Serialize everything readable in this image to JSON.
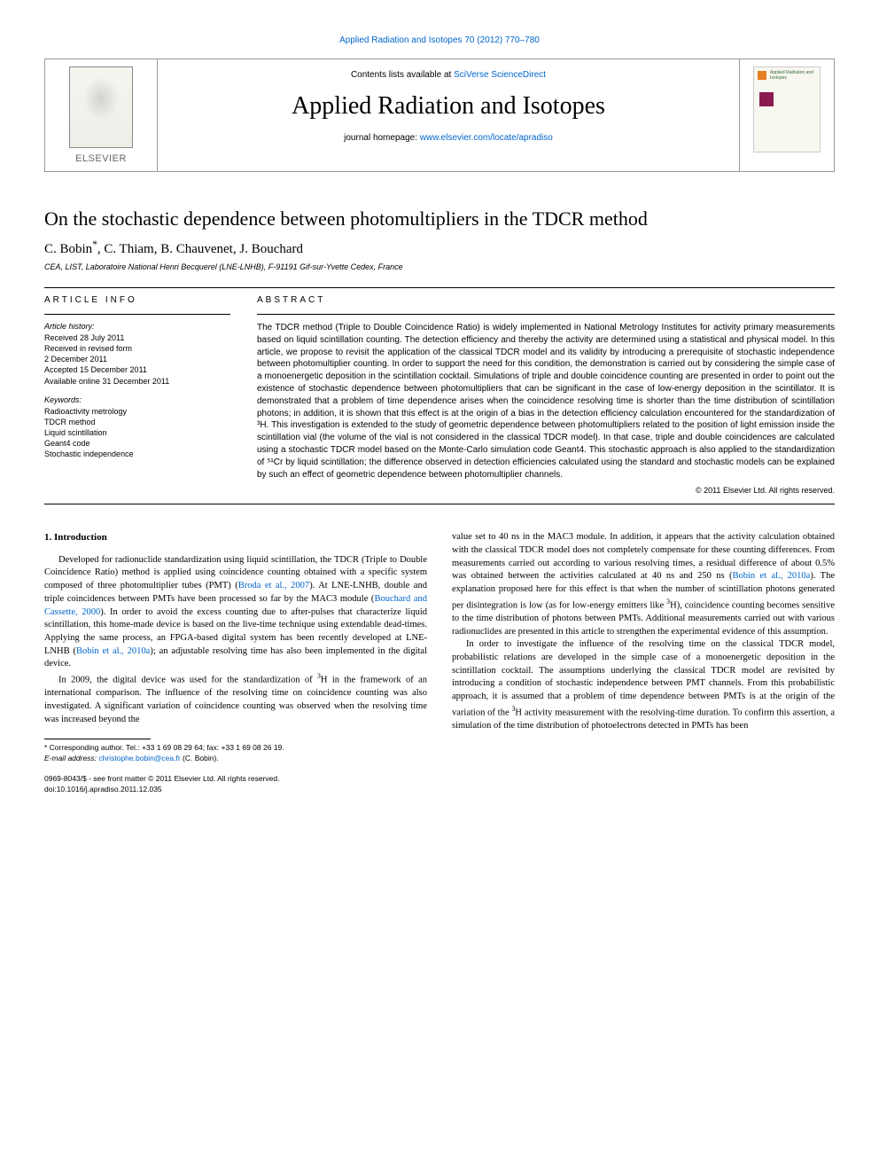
{
  "top_citation": "Applied Radiation and Isotopes 70 (2012) 770–780",
  "header": {
    "contents_prefix": "Contents lists available at ",
    "contents_link": "SciVerse ScienceDirect",
    "journal_name": "Applied Radiation and Isotopes",
    "homepage_prefix": "journal homepage: ",
    "homepage_link": "www.elsevier.com/locate/apradiso",
    "publisher": "ELSEVIER",
    "cover_title": "Applied Radiation and Isotopes"
  },
  "article": {
    "title": "On the stochastic dependence between photomultipliers in the TDCR method",
    "authors_html": "C. Bobin *, C. Thiam, B. Chauvenet, J. Bouchard",
    "affiliation": "CEA, LIST, Laboratoire National Henri Becquerel (LNE-LNHB), F-91191 Gif-sur-Yvette Cedex, France"
  },
  "info": {
    "heading": "ARTICLE INFO",
    "history_heading": "Article history:",
    "history": [
      "Received 28 July 2011",
      "Received in revised form",
      "2 December 2011",
      "Accepted 15 December 2011",
      "Available online 31 December 2011"
    ],
    "keywords_heading": "Keywords:",
    "keywords": [
      "Radioactivity metrology",
      "TDCR method",
      "Liquid scintillation",
      "Geant4 code",
      "Stochastic independence"
    ]
  },
  "abstract": {
    "heading": "ABSTRACT",
    "text": "The TDCR method (Triple to Double Coincidence Ratio) is widely implemented in National Metrology Institutes for activity primary measurements based on liquid scintillation counting. The detection efficiency and thereby the activity are determined using a statistical and physical model. In this article, we propose to revisit the application of the classical TDCR model and its validity by introducing a prerequisite of stochastic independence between photomultiplier counting. In order to support the need for this condition, the demonstration is carried out by considering the simple case of a monoenergetic deposition in the scintillation cocktail. Simulations of triple and double coincidence counting are presented in order to point out the existence of stochastic dependence between photomultipliers that can be significant in the case of low-energy deposition in the scintillator. It is demonstrated that a problem of time dependence arises when the coincidence resolving time is shorter than the time distribution of scintillation photons; in addition, it is shown that this effect is at the origin of a bias in the detection efficiency calculation encountered for the standardization of ³H. This investigation is extended to the study of geometric dependence between photomultipliers related to the position of light emission inside the scintillation vial (the volume of the vial is not considered in the classical TDCR model). In that case, triple and double coincidences are calculated using a stochastic TDCR model based on the Monte-Carlo simulation code Geant4. This stochastic approach is also applied to the standardization of ⁵¹Cr by liquid scintillation; the difference observed in detection efficiencies calculated using the standard and stochastic models can be explained by such an effect of geometric dependence between photomultiplier channels.",
    "copyright": "© 2011 Elsevier Ltd. All rights reserved."
  },
  "body": {
    "section_heading": "1.  Introduction",
    "col1": {
      "p1": "Developed for radionuclide standardization using liquid scintillation, the TDCR (Triple to Double Coincidence Ratio) method is applied using coincidence counting obtained with a specific system composed of three photomultiplier tubes (PMT) (Broda et al., 2007). At LNE-LNHB, double and triple coincidences between PMTs have been processed so far by the MAC3 module (Bouchard and Cassette, 2000). In order to avoid the excess counting due to after-pulses that characterize liquid scintillation, this home-made device is based on the live-time technique using extendable dead-times. Applying the same process, an FPGA-based digital system has been recently developed at LNE-LNHB (Bobin et al., 2010a); an adjustable resolving time has also been implemented in the digital device.",
      "p2": "In 2009, the digital device was used for the standardization of ³H in the framework of an international comparison. The influence of the resolving time on coincidence counting was also investigated. A significant variation of coincidence counting was observed when the resolving time was increased beyond the"
    },
    "col2": {
      "p1": "value set to 40 ns in the MAC3 module. In addition, it appears that the activity calculation obtained with the classical TDCR model does not completely compensate for these counting differences. From measurements carried out according to various resolving times, a residual difference of about 0.5% was obtained between the activities calculated at 40 ns and 250 ns (Bobin et al., 2010a). The explanation proposed here for this effect is that when the number of scintillation photons generated per disintegration is low (as for low-energy emitters like ³H), coincidence counting becomes sensitive to the time distribution of photons between PMTs. Additional measurements carried out with various radionuclides are presented in this article to strengthen the experimental evidence of this assumption.",
      "p2": "In order to investigate the influence of the resolving time on the classical TDCR model, probabilistic relations are developed in the simple case of a monoenergetic deposition in the scintillation cocktail. The assumptions underlying the classical TDCR model are revisited by introducing a condition of stochastic independence between PMT channels. From this probabilistic approach, it is assumed that a problem of time dependence between PMTs is at the origin of the variation of the ³H activity measurement with the resolving-time duration. To confirm this assertion, a simulation of the time distribution of photoelectrons detected in PMTs has been"
    }
  },
  "footnote": {
    "corr": "* Corresponding author. Tel.: +33 1 69 08 29 64; fax: +33 1 69 08 26 19.",
    "email_label": "E-mail address: ",
    "email": "christophe.bobin@cea.fr",
    "email_suffix": " (C. Bobin)."
  },
  "footer": {
    "issn": "0969-8043/$ - see front matter © 2011 Elsevier Ltd. All rights reserved.",
    "doi": "doi:10.1016/j.apradiso.2011.12.035"
  },
  "colors": {
    "link": "#0066cc",
    "text": "#000000",
    "border": "#999999"
  }
}
